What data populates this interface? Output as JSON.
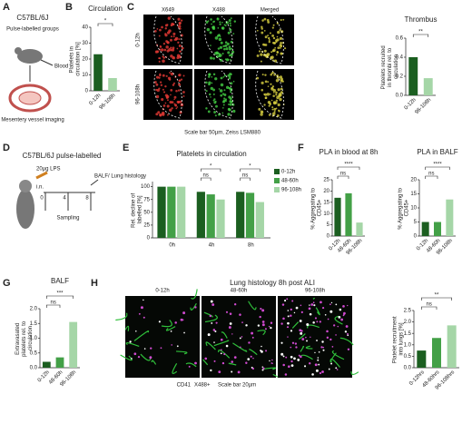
{
  "panels": {
    "a": {
      "label": "A",
      "strain": "C57BL/6J",
      "groups": "Pulse-labelled groups",
      "blood": "Blood",
      "imaging": "Mesentery vessel imaging"
    },
    "b": {
      "label": "B"
    },
    "c": {
      "label": "C",
      "channels": [
        "X649",
        "X488",
        "Merged"
      ],
      "rows": [
        "0-12h",
        "96-108h"
      ],
      "caption": "Scale bar 50µm, Zeiss LSM880"
    },
    "d": {
      "label": "D",
      "title": "C57BL/6J  pulse-labelled",
      "dose": "20µg LPS",
      "route": "i.n.",
      "times": [
        "0",
        "4",
        "8"
      ],
      "sampling": "Sampling",
      "endpoint": "BALF/ Lung histology"
    },
    "e": {
      "label": "E"
    },
    "f": {
      "label": "F"
    },
    "g": {
      "label": "G"
    },
    "h": {
      "label": "H",
      "title": "Lung histology 8h post ALI",
      "images": [
        "0-12h",
        "48-60h",
        "96-108h"
      ],
      "stain1": "CD41",
      "stain2": "X488+",
      "scale": "Scale bar 20µm"
    }
  },
  "chart_data": [
    {
      "type": "bar",
      "title": "Circulation",
      "ylabel": "Platelets in circulation [%]",
      "categories": [
        "0-12h",
        "96-108h"
      ],
      "values": [
        23,
        8
      ],
      "colors": [
        "#1b5e20",
        "#a5d6a7"
      ],
      "ylim": [
        0,
        40
      ],
      "yticks": [
        0,
        10,
        20,
        30,
        40
      ],
      "significance": [
        "*"
      ]
    },
    {
      "type": "bar",
      "title": "Thrombus",
      "ylabel": "Platelets recruited in thrombi rel. to circulation",
      "categories": [
        "0-12h",
        "96-108h"
      ],
      "values": [
        0.4,
        0.18
      ],
      "colors": [
        "#1b5e20",
        "#a5d6a7"
      ],
      "ylim": [
        0,
        0.6
      ],
      "yticks": [
        {
          "value": 0,
          "label": "0.0"
        },
        0.2,
        0.4,
        0.6
      ],
      "significance": [
        "**"
      ]
    },
    {
      "type": "grouped-bar",
      "title": "Platelets in circulation",
      "ylabel": "Rel. decline of labelled [%]",
      "categories": [
        "0h",
        "4h",
        "8h"
      ],
      "series": [
        {
          "name": "0-12h",
          "color": "#1b5e20",
          "values": [
            100,
            90,
            90
          ]
        },
        {
          "name": "48-60h",
          "color": "#43a047",
          "values": [
            100,
            85,
            88
          ]
        },
        {
          "name": "96-108h",
          "color": "#a5d6a7",
          "values": [
            100,
            75,
            70
          ]
        }
      ],
      "ylim": [
        0,
        110
      ],
      "yticks": [
        0,
        25,
        50,
        75,
        100
      ],
      "significance": [
        "ns",
        "*",
        "ns",
        "*"
      ]
    },
    {
      "type": "bar",
      "title": "PLA in blood at 8h",
      "ylabel": "% Aggregating to CD45+",
      "categories": [
        "0-12h",
        "48-60h",
        "96-108h"
      ],
      "values": [
        17,
        19,
        6
      ],
      "colors": [
        "#1b5e20",
        "#43a047",
        "#a5d6a7"
      ],
      "ylim": [
        0,
        25
      ],
      "yticks": [
        0,
        5,
        10,
        15,
        20,
        25
      ],
      "significance": [
        "ns",
        "****"
      ]
    },
    {
      "type": "bar",
      "title": "PLA in  BALF",
      "ylabel": "% Aggregating to CD45+",
      "categories": [
        "0-12h",
        "48-60h",
        "96-108h"
      ],
      "values": [
        5,
        5,
        13
      ],
      "colors": [
        "#1b5e20",
        "#43a047",
        "#a5d6a7"
      ],
      "ylim": [
        0,
        20
      ],
      "yticks": [
        0,
        5,
        10,
        15,
        20
      ],
      "significance": [
        "ns",
        "****"
      ]
    },
    {
      "type": "bar",
      "title": "BALF",
      "ylabel": "Extravasated platelets rel. to circulation",
      "categories": [
        "0-12h",
        "48-60h",
        "96-108h"
      ],
      "values": [
        0.2,
        0.35,
        1.55
      ],
      "colors": [
        "#1b5e20",
        "#43a047",
        "#a5d6a7"
      ],
      "ylim": [
        0,
        2
      ],
      "yticks": [
        {
          "value": 0,
          "label": "0.0"
        },
        0.5,
        {
          "value": 1,
          "label": "1.0"
        },
        1.5,
        {
          "value": 2,
          "label": "2.0"
        }
      ],
      "significance": [
        "ns",
        "***"
      ]
    },
    {
      "type": "bar",
      "ylabel": "Platelet recruitment into lungs [%]",
      "categories": [
        "0-12hrs",
        "48-60hrs",
        "96-108hrs"
      ],
      "values": [
        0.75,
        1.3,
        1.85
      ],
      "colors": [
        "#1b5e20",
        "#43a047",
        "#a5d6a7"
      ],
      "ylim": [
        0,
        2.5
      ],
      "yticks": [
        {
          "value": 0,
          "label": "0.0"
        },
        0.5,
        {
          "value": 1,
          "label": "1.0"
        },
        1.5,
        {
          "value": 2,
          "label": "2.0"
        },
        2.5
      ],
      "significance": [
        "ns",
        "**"
      ]
    }
  ]
}
